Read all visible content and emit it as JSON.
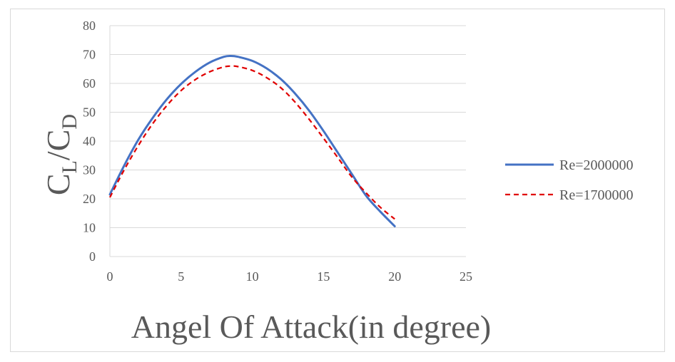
{
  "chart_data": {
    "type": "line",
    "title": "",
    "xlabel": "Angel Of Attack(in degree)",
    "ylabel": {
      "main1": "C",
      "sub1": "L",
      "sep": "/",
      "main2": "C",
      "sub2": "D"
    },
    "xlim": [
      0,
      25
    ],
    "ylim": [
      0,
      80
    ],
    "xticks": [
      0,
      5,
      10,
      15,
      20,
      25
    ],
    "yticks": [
      0,
      10,
      20,
      30,
      40,
      50,
      60,
      70,
      80
    ],
    "grid": "horizontal",
    "legend_position": "right",
    "series": [
      {
        "name": "Re=2000000",
        "color": "#4472c4",
        "style": "solid",
        "x": [
          0,
          1,
          2,
          3,
          4,
          5,
          6,
          7,
          8,
          8.5,
          9,
          10,
          11,
          12,
          13,
          14,
          15,
          16,
          17,
          18,
          19,
          20
        ],
        "y": [
          21.5,
          31.5,
          40.5,
          48,
          54.5,
          59.8,
          64,
          67.2,
          69.2,
          69.5,
          69.2,
          67.8,
          65.2,
          61.5,
          56.5,
          50.5,
          43.5,
          36,
          28.5,
          21,
          15.5,
          10.5
        ]
      },
      {
        "name": "Re=1700000",
        "color": "#e00000",
        "style": "dashed",
        "x": [
          0,
          1,
          2,
          3,
          4,
          5,
          6,
          7,
          8,
          8.5,
          9,
          10,
          11,
          12,
          13,
          14,
          15,
          16,
          17,
          18,
          19,
          20
        ],
        "y": [
          20.5,
          30,
          38.5,
          46,
          52.3,
          57.5,
          61.3,
          64,
          65.7,
          66,
          65.8,
          64.5,
          62,
          58.5,
          53.5,
          47.5,
          41,
          34.3,
          27.5,
          22,
          17,
          13
        ]
      }
    ]
  }
}
